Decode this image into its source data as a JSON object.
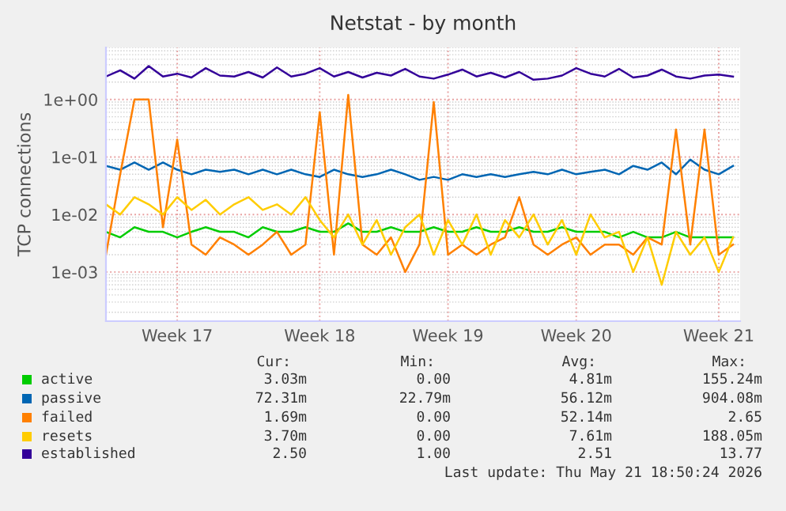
{
  "chart_data": {
    "type": "line",
    "title": "Netstat - by month",
    "ylabel": "TCP connections",
    "log": "y",
    "grid": true,
    "legend": "bottom",
    "categories": [
      null,
      null,
      null,
      null,
      null,
      "Week 17",
      null,
      null,
      null,
      null,
      null,
      null,
      null,
      null,
      null,
      "Week 18",
      null,
      null,
      null,
      null,
      null,
      null,
      null,
      null,
      "Week 19",
      null,
      null,
      null,
      null,
      null,
      null,
      null,
      null,
      "Week 20",
      null,
      null,
      null,
      null,
      null,
      null,
      null,
      null,
      null,
      "Week 21",
      null
    ],
    "ylim": [
      0.00014,
      8
    ],
    "yticks": [
      {
        "value": 0.001,
        "label": "1e-03"
      },
      {
        "value": 0.01,
        "label": "1e-02"
      },
      {
        "value": 0.1,
        "label": "1e-01"
      },
      {
        "value": 1,
        "label": "1e+00"
      }
    ],
    "series": [
      {
        "name": "active",
        "color": "#00cc00",
        "values": [
          0.005,
          0.004,
          0.006,
          0.005,
          0.005,
          0.004,
          0.005,
          0.006,
          0.005,
          0.005,
          0.004,
          0.006,
          0.005,
          0.005,
          0.006,
          0.005,
          0.005,
          0.007,
          0.005,
          0.005,
          0.006,
          0.005,
          0.005,
          0.006,
          0.005,
          0.005,
          0.006,
          0.005,
          0.005,
          0.006,
          0.005,
          0.005,
          0.006,
          0.005,
          0.005,
          0.005,
          0.004,
          0.005,
          0.004,
          0.004,
          0.005,
          0.004,
          0.004,
          0.004,
          0.004
        ]
      },
      {
        "name": "passive",
        "color": "#0066b3",
        "values": [
          0.07,
          0.06,
          0.08,
          0.06,
          0.08,
          0.06,
          0.05,
          0.06,
          0.055,
          0.06,
          0.05,
          0.06,
          0.05,
          0.06,
          0.05,
          0.045,
          0.06,
          0.05,
          0.045,
          0.05,
          0.06,
          0.05,
          0.04,
          0.045,
          0.04,
          0.05,
          0.045,
          0.05,
          0.045,
          0.05,
          0.055,
          0.05,
          0.06,
          0.05,
          0.055,
          0.06,
          0.05,
          0.07,
          0.06,
          0.08,
          0.05,
          0.09,
          0.06,
          0.05,
          0.07
        ]
      },
      {
        "name": "failed",
        "color": "#ff8000",
        "values": [
          0.002,
          0.05,
          1.0,
          1.0,
          0.006,
          0.2,
          0.003,
          0.002,
          0.004,
          0.003,
          0.002,
          0.003,
          0.005,
          0.002,
          0.003,
          0.6,
          0.002,
          1.2,
          0.003,
          0.002,
          0.004,
          0.001,
          0.003,
          0.9,
          0.002,
          0.003,
          0.002,
          0.003,
          0.004,
          0.02,
          0.003,
          0.002,
          0.003,
          0.004,
          0.002,
          0.003,
          0.003,
          0.002,
          0.004,
          0.003,
          0.3,
          0.003,
          0.3,
          0.002,
          0.003
        ]
      },
      {
        "name": "resets",
        "color": "#ffcc00",
        "values": [
          0.015,
          0.01,
          0.02,
          0.015,
          0.01,
          0.02,
          0.012,
          0.018,
          0.01,
          0.015,
          0.02,
          0.012,
          0.015,
          0.01,
          0.02,
          0.008,
          0.004,
          0.01,
          0.003,
          0.008,
          0.002,
          0.006,
          0.01,
          0.002,
          0.008,
          0.003,
          0.01,
          0.002,
          0.008,
          0.004,
          0.01,
          0.003,
          0.008,
          0.002,
          0.01,
          0.004,
          0.005,
          0.001,
          0.004,
          0.0006,
          0.005,
          0.002,
          0.004,
          0.001,
          0.004
        ]
      },
      {
        "name": "established",
        "color": "#330099",
        "values": [
          2.5,
          3.2,
          2.3,
          3.8,
          2.5,
          2.8,
          2.4,
          3.5,
          2.6,
          2.5,
          3.0,
          2.4,
          3.6,
          2.5,
          2.8,
          3.5,
          2.5,
          3.0,
          2.4,
          2.9,
          2.6,
          3.4,
          2.5,
          2.3,
          2.7,
          3.3,
          2.5,
          2.9,
          2.4,
          3.0,
          2.2,
          2.3,
          2.6,
          3.5,
          2.8,
          2.5,
          3.4,
          2.4,
          2.6,
          3.3,
          2.5,
          2.3,
          2.6,
          2.7,
          2.5
        ]
      }
    ],
    "annotations": [
      "Cur:",
      "Min:",
      "Avg:",
      "Max:",
      "3.03m",
      "0.00",
      "4.81m",
      "155.24m",
      "72.31m",
      "22.79m",
      "56.12m",
      "904.08m",
      "1.69m",
      "0.00",
      "52.14m",
      "2.65",
      "3.70m",
      "0.00",
      "7.61m",
      "188.05m",
      "2.50",
      "1.00",
      "2.51",
      "13.77",
      "Last update: Thu May 21 18:50:24 2026"
    ]
  }
}
